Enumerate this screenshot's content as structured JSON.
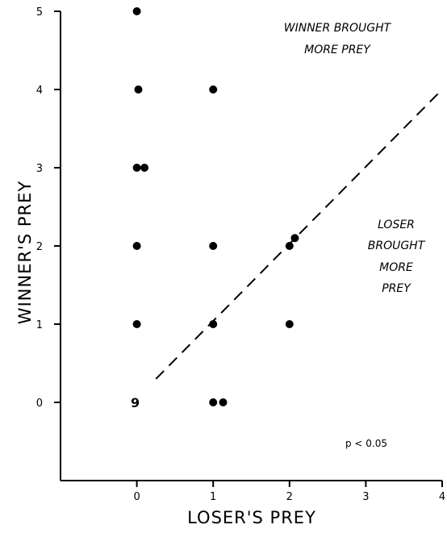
{
  "chart_data": {
    "type": "scatter",
    "xlabel": "LOSER'S PREY",
    "ylabel": "WINNER'S PREY",
    "x_ticks": [
      "0",
      "1",
      "2",
      "3",
      "4"
    ],
    "y_ticks": [
      "0",
      "1",
      "2",
      "3",
      "4",
      "5"
    ],
    "xlim": [
      -1,
      4
    ],
    "ylim": [
      -1,
      5
    ],
    "grid": false,
    "points": [
      {
        "x": 0,
        "y": 5
      },
      {
        "x": 0.02,
        "y": 4
      },
      {
        "x": 1,
        "y": 4
      },
      {
        "x": 0,
        "y": 3
      },
      {
        "x": 0.1,
        "y": 3
      },
      {
        "x": 0,
        "y": 2
      },
      {
        "x": 1,
        "y": 2
      },
      {
        "x": 2,
        "y": 2
      },
      {
        "x": 2.07,
        "y": 2.1
      },
      {
        "x": 0,
        "y": 1
      },
      {
        "x": 1,
        "y": 1
      },
      {
        "x": 2,
        "y": 1
      },
      {
        "x": 1,
        "y": 0
      },
      {
        "x": 1.13,
        "y": 0
      }
    ],
    "count_label": {
      "x": 0,
      "y": 0,
      "text": "9"
    },
    "diagonal": {
      "from": [
        0.25,
        0.3
      ],
      "to": [
        4,
        4
      ]
    },
    "annotations": {
      "winner": [
        "WINNER BROUGHT",
        "MORE PREY"
      ],
      "loser": [
        "LOSER",
        "BROUGHT",
        "MORE",
        "PREY"
      ],
      "pvalue": "p < 0.05"
    }
  }
}
